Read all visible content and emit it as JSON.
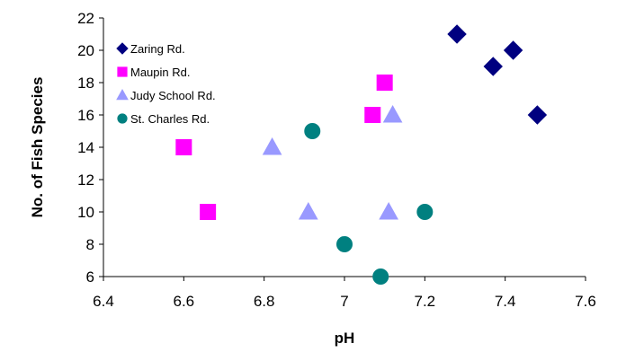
{
  "chart_data": {
    "type": "scatter",
    "title": "",
    "xlabel": "pH",
    "ylabel": "No. of Fish Species",
    "xlim": [
      6.4,
      7.6
    ],
    "ylim": [
      6,
      22
    ],
    "xticks": [
      "6.4",
      "6.6",
      "6.8",
      "7",
      "7.2",
      "7.4",
      "7.6"
    ],
    "yticks": [
      "6",
      "8",
      "10",
      "12",
      "14",
      "16",
      "18",
      "20",
      "22"
    ],
    "grid": false,
    "legend_position": "top-left",
    "series": [
      {
        "name": "Zaring Rd.",
        "marker": "diamond",
        "color": "#000080",
        "points": [
          [
            7.28,
            21
          ],
          [
            7.37,
            19
          ],
          [
            7.42,
            20
          ],
          [
            7.48,
            16
          ]
        ]
      },
      {
        "name": "Maupin Rd.",
        "marker": "square",
        "color": "#ff00ff",
        "points": [
          [
            6.6,
            14
          ],
          [
            6.66,
            10
          ],
          [
            7.07,
            16
          ],
          [
            7.1,
            18
          ]
        ]
      },
      {
        "name": "Judy School Rd.",
        "marker": "triangle",
        "color": "#9999ff",
        "points": [
          [
            6.82,
            14
          ],
          [
            6.91,
            10
          ],
          [
            7.11,
            10
          ],
          [
            7.12,
            16
          ]
        ]
      },
      {
        "name": "St. Charles Rd.",
        "marker": "circle",
        "color": "#008080",
        "points": [
          [
            6.92,
            15
          ],
          [
            7.0,
            8
          ],
          [
            7.09,
            6
          ],
          [
            7.2,
            10
          ]
        ]
      }
    ]
  }
}
